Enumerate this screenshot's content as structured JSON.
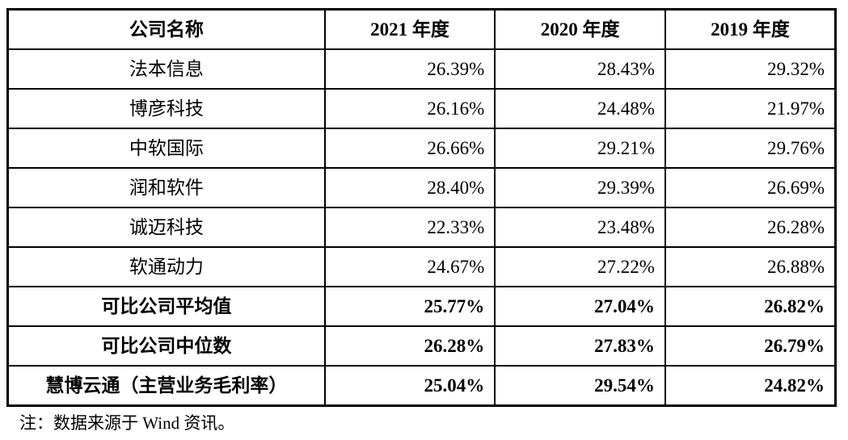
{
  "table": {
    "columns": [
      "公司名称",
      "2021 年度",
      "2020 年度",
      "2019 年度"
    ],
    "rows": [
      {
        "name": "法本信息",
        "values": [
          "26.39%",
          "28.43%",
          "29.32%"
        ]
      },
      {
        "name": "博彦科技",
        "values": [
          "26.16%",
          "24.48%",
          "21.97%"
        ]
      },
      {
        "name": "中软国际",
        "values": [
          "26.66%",
          "29.21%",
          "29.76%"
        ]
      },
      {
        "name": "润和软件",
        "values": [
          "28.40%",
          "29.39%",
          "26.69%"
        ]
      },
      {
        "name": "诚迈科技",
        "values": [
          "22.33%",
          "23.48%",
          "26.28%"
        ]
      },
      {
        "name": "软通动力",
        "values": [
          "24.67%",
          "27.22%",
          "26.88%"
        ]
      },
      {
        "name": "可比公司平均值",
        "values": [
          "25.77%",
          "27.04%",
          "26.82%"
        ]
      },
      {
        "name": "可比公司中位数",
        "values": [
          "26.28%",
          "27.83%",
          "26.79%"
        ]
      },
      {
        "name": "慧博云通（主营业务毛利率）",
        "values": [
          "25.04%",
          "29.54%",
          "24.82%"
        ]
      }
    ]
  },
  "note": "注：数据来源于 Wind 资讯。",
  "colors": {
    "border": "#000000",
    "text": "#000000",
    "background": "#ffffff"
  }
}
